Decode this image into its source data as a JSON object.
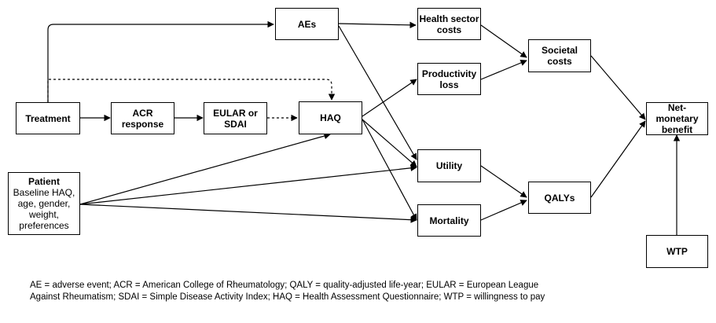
{
  "nodes": {
    "aes": "AEs",
    "health_sector_costs": "Health sector\ncosts",
    "productivity_loss": "Productivity\nloss",
    "societal_costs": "Societal\ncosts",
    "treatment": "Treatment",
    "acr_response": "ACR\nresponse",
    "eular_sdai": "EULAR or\nSDAI",
    "haq": "HAQ",
    "net_monetary_benefit": "Net-\nmonetary\nbenefit",
    "utility": "Utility",
    "qalys": "QALYs",
    "mortality": "Mortality",
    "wtp": "WTP",
    "patient_title": "Patient",
    "patient_body": "Baseline HAQ,\nage, gender,\nweight,\npreferences"
  },
  "caption": "AE = adverse event; ACR = American College of Rheumatology; QALY = quality-adjusted life-year; EULAR = European League\nAgainst Rheumatism; SDAI = Simple Disease Activity Index; HAQ = Health Assessment Questionnaire; WTP = willingness to pay"
}
